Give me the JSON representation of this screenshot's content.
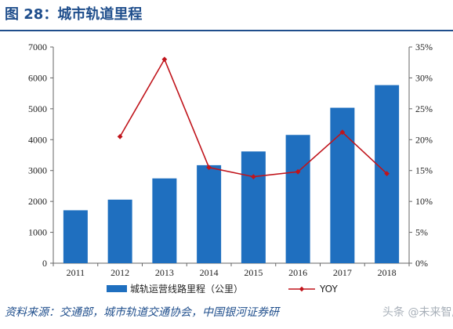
{
  "title": "图 28：城市轨道里程",
  "source": "资料来源：交通部，城市轨道交通协会，中国银河证券研",
  "watermark": "头条 @未来智库",
  "colors": {
    "bar": "#1f6fbf",
    "line": "#c0141b",
    "title": "#1f4e8c"
  },
  "chart_data": {
    "type": "bar",
    "categories": [
      "2011",
      "2012",
      "2013",
      "2014",
      "2015",
      "2016",
      "2017",
      "2018"
    ],
    "series": [
      {
        "name": "城轨运营线路里程（公里）",
        "type": "bar",
        "axis": "left",
        "values": [
          1714,
          2058,
          2746,
          3173,
          3618,
          4153,
          5033,
          5766
        ]
      },
      {
        "name": "YOY",
        "type": "line",
        "axis": "right",
        "values": [
          null,
          0.205,
          0.33,
          0.155,
          0.14,
          0.148,
          0.212,
          0.145
        ]
      }
    ],
    "ylim": [
      0,
      7000
    ],
    "yticks": [
      "0",
      "1000",
      "2000",
      "3000",
      "4000",
      "5000",
      "6000",
      "7000"
    ],
    "y2lim": [
      0,
      0.35
    ],
    "y2ticks": [
      "0%",
      "5%",
      "10%",
      "15%",
      "20%",
      "25%",
      "30%",
      "35%"
    ],
    "legend": "bottom",
    "grid": false
  }
}
